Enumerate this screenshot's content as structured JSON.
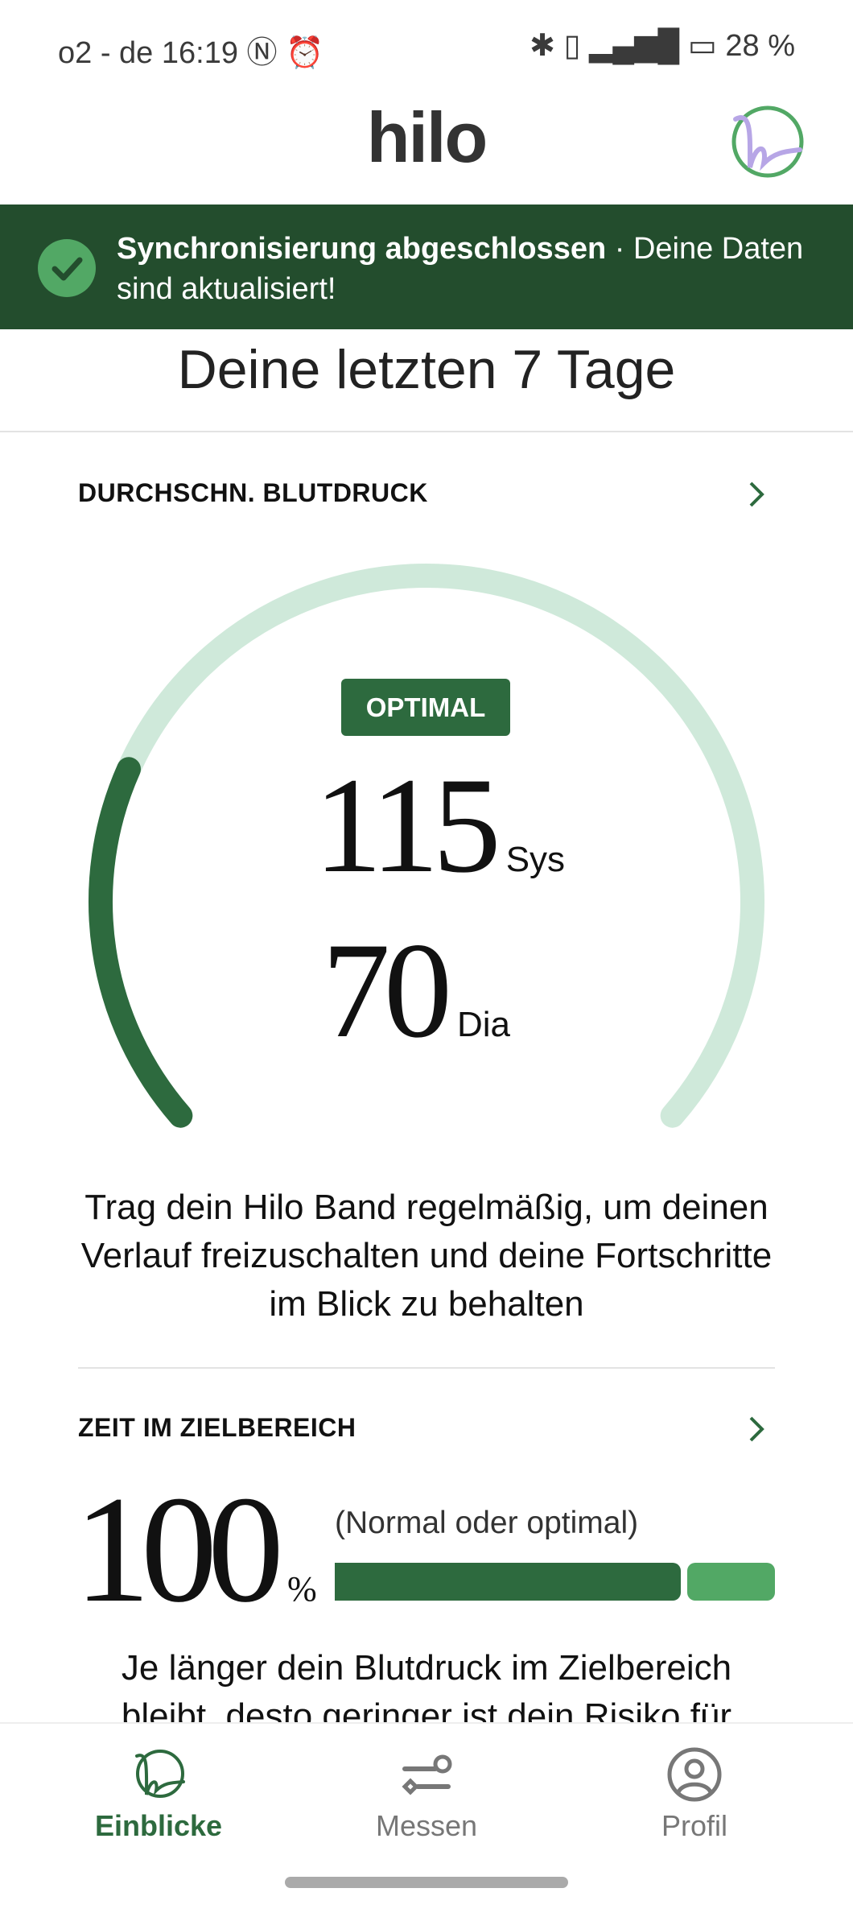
{
  "status_bar": {
    "carrier": "o2 - de",
    "time": "16:19",
    "battery": "28 %",
    "icons": [
      "nfc-icon",
      "alarm-icon",
      "bluetooth-icon",
      "vibrate-icon",
      "5g-signal-icon",
      "battery-icon"
    ]
  },
  "header": {
    "logo": "hilo",
    "avatar_icon": "hilo-avatar-icon"
  },
  "banner": {
    "bold": "Synchronisierung abgeschlossen",
    "rest": " · Deine Daten sind aktualisiert!",
    "icon": "check-circle-icon"
  },
  "title": "Deine letzten 7 Tage",
  "blood_pressure": {
    "heading": "DURCHSCHN. BLUTDRUCK",
    "status": "OPTIMAL",
    "sys": "115",
    "sys_unit": "Sys",
    "dia": "70",
    "dia_unit": "Dia",
    "message": "Trag dein Hilo Band regelmäßig, um deinen Verlauf freizuschalten und deine Fortschritte im Blick zu behalten"
  },
  "target_range": {
    "heading": "ZEIT IM ZIELBEREICH",
    "value": "100",
    "unit": "%",
    "label": "(Normal oder optimal)",
    "percent": 100,
    "message": "Je länger dein Blutdruck im Zielbereich bleibt, desto geringer ist dein Risiko für"
  },
  "nav": {
    "items": [
      {
        "label": "Einblicke",
        "active": true
      },
      {
        "label": "Messen"
      },
      {
        "label": "Profil"
      }
    ]
  },
  "colors": {
    "dark_green": "#234d2d",
    "accent": "#2d6a3e",
    "light_green": "#52a865",
    "gauge_track": "#cfe9da"
  }
}
